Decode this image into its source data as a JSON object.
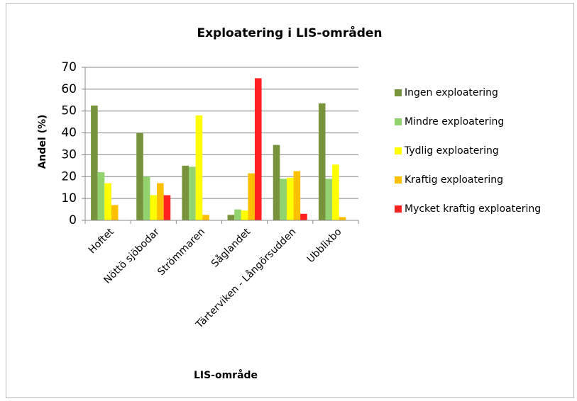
{
  "chart_data": {
    "type": "bar",
    "title": "Exploatering i LIS-områden",
    "x_label": "LIS-område",
    "y_label": "Andel (%)",
    "categories": [
      "Hoftet",
      "Nöttö sjöbodar",
      "Strömmaren",
      "Såglandet",
      "Tärterviken - Långörsudden",
      "Ubblixbo"
    ],
    "series": [
      {
        "name": "Ingen exploatering",
        "color": "#77933c",
        "values": [
          52.5,
          40,
          25,
          2.5,
          34.5,
          53.5
        ]
      },
      {
        "name": "Mindre exploatering",
        "color": "#92d36e",
        "values": [
          22,
          20,
          24.5,
          5,
          19,
          19
        ]
      },
      {
        "name": "Tydlig exploatering",
        "color": "#ffff00",
        "values": [
          17,
          11.5,
          48,
          4.5,
          19.5,
          25.5
        ]
      },
      {
        "name": "Kraftig exploatering",
        "color": "#ffc000",
        "values": [
          7,
          17,
          2.5,
          21.5,
          22.5,
          1.5
        ]
      },
      {
        "name": "Mycket kraftig exploatering",
        "color": "#ff2020",
        "values": [
          0,
          11.5,
          0,
          65,
          3,
          0
        ]
      }
    ],
    "ylim": [
      0,
      70
    ],
    "yticks": [
      0,
      10,
      20,
      30,
      40,
      50,
      60,
      70
    ],
    "grid": true,
    "legend": "right"
  }
}
